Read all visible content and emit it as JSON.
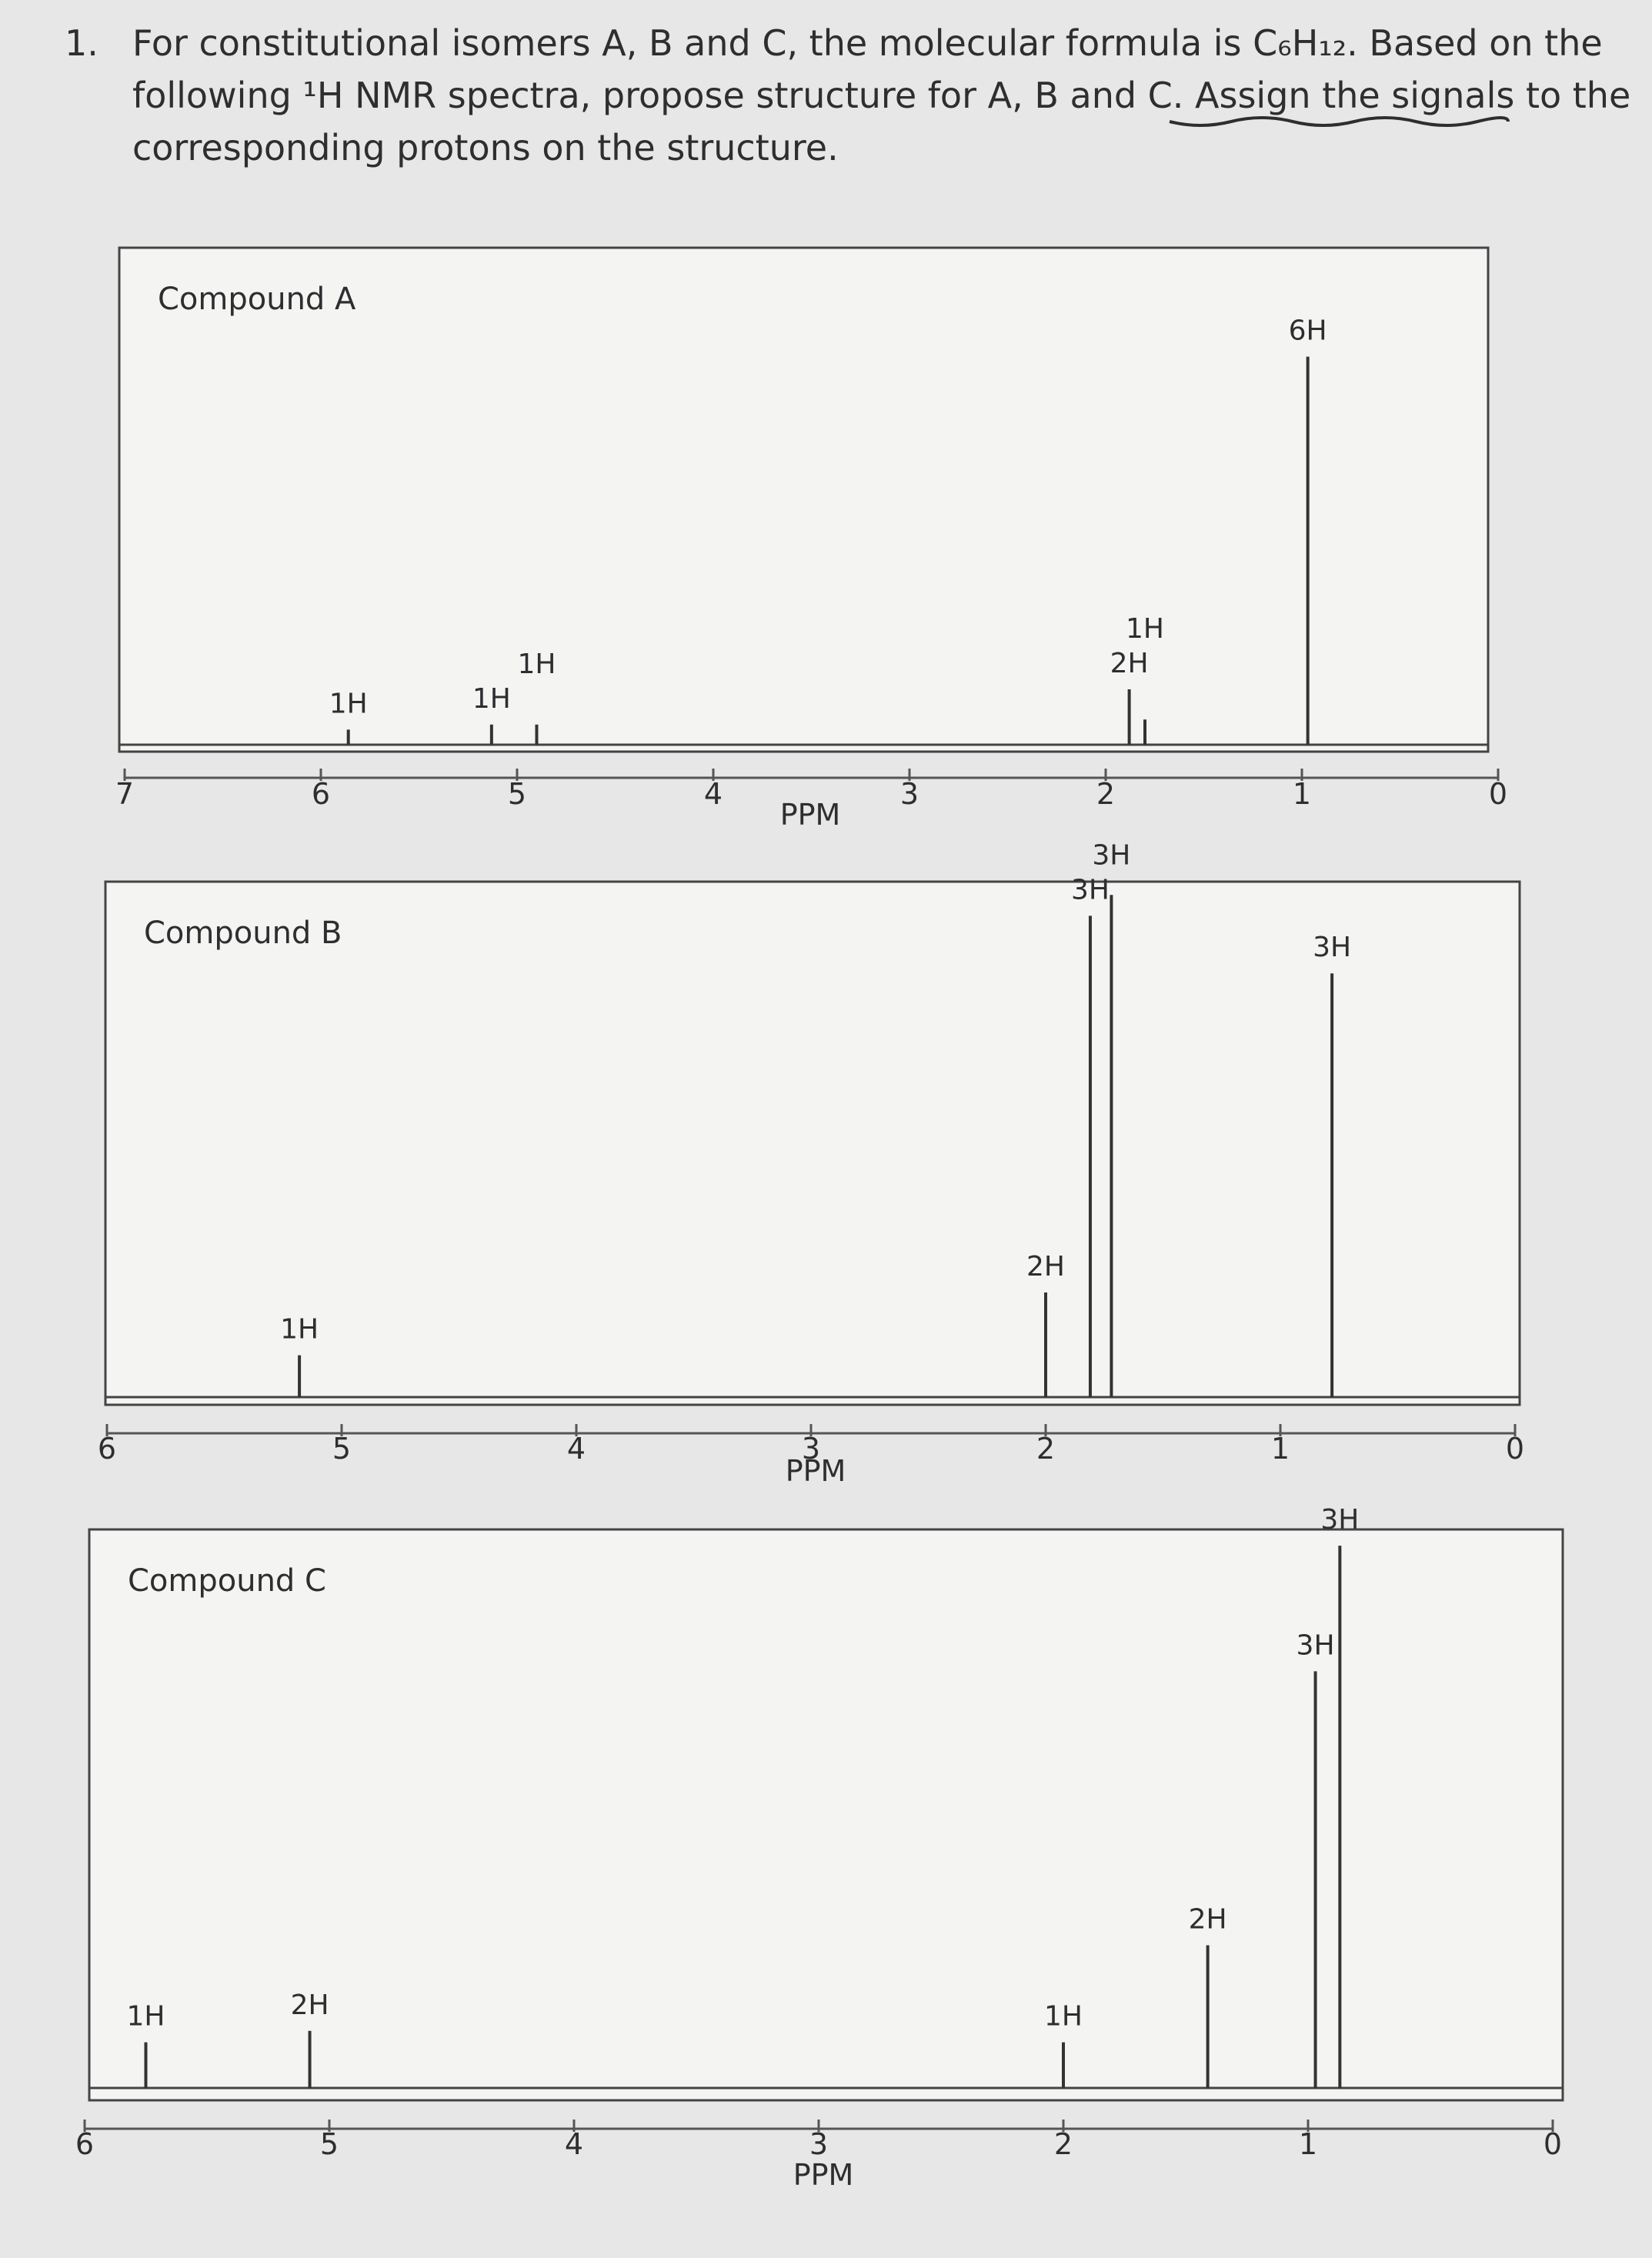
{
  "question": {
    "number": "1.",
    "lines": [
      "For constitutional isomers A, B and C, the molecular formula is C₆H₁₂. Based on the",
      "following ¹H NMR spectra, propose structure for A, B and C. Assign the signals to the",
      "corresponding protons on the structure."
    ]
  },
  "spectra": [
    {
      "title": "Compound A",
      "axis_label": "PPM",
      "ticks": [
        7,
        6,
        5,
        4,
        3,
        2,
        1,
        0
      ],
      "peaks": [
        {
          "label": "1H",
          "ppm": 5.86,
          "intensity": 3
        },
        {
          "label": "1H",
          "ppm": 5.13,
          "intensity": 4
        },
        {
          "label": "1H",
          "ppm": 4.9,
          "intensity": 4
        },
        {
          "label": "2H",
          "ppm": 1.88,
          "intensity": 11
        },
        {
          "label": "1H",
          "ppm": 1.8,
          "intensity": 5
        },
        {
          "label": "6H",
          "ppm": 0.97,
          "intensity": 77
        }
      ]
    },
    {
      "title": "Compound B",
      "axis_label": "PPM",
      "ticks": [
        6,
        5,
        4,
        3,
        2,
        1,
        0
      ],
      "peaks": [
        {
          "label": "1H",
          "ppm": 5.18,
          "intensity": 8
        },
        {
          "label": "2H",
          "ppm": 2.0,
          "intensity": 20
        },
        {
          "label": "3H",
          "ppm": 1.81,
          "intensity": 92
        },
        {
          "label": "3H",
          "ppm": 1.72,
          "intensity": 96
        },
        {
          "label": "3H",
          "ppm": 0.78,
          "intensity": 81
        }
      ]
    },
    {
      "title": "Compound C",
      "axis_label": "PPM",
      "ticks": [
        6,
        5,
        4,
        3,
        2,
        1,
        0
      ],
      "peaks": [
        {
          "label": "1H",
          "ppm": 5.75,
          "intensity": 8
        },
        {
          "label": "2H",
          "ppm": 5.08,
          "intensity": 10
        },
        {
          "label": "1H",
          "ppm": 2.0,
          "intensity": 8
        },
        {
          "label": "2H",
          "ppm": 1.41,
          "intensity": 25
        },
        {
          "label": "3H",
          "ppm": 0.97,
          "intensity": 73
        },
        {
          "label": "3H",
          "ppm": 0.87,
          "intensity": 95
        }
      ]
    }
  ]
}
